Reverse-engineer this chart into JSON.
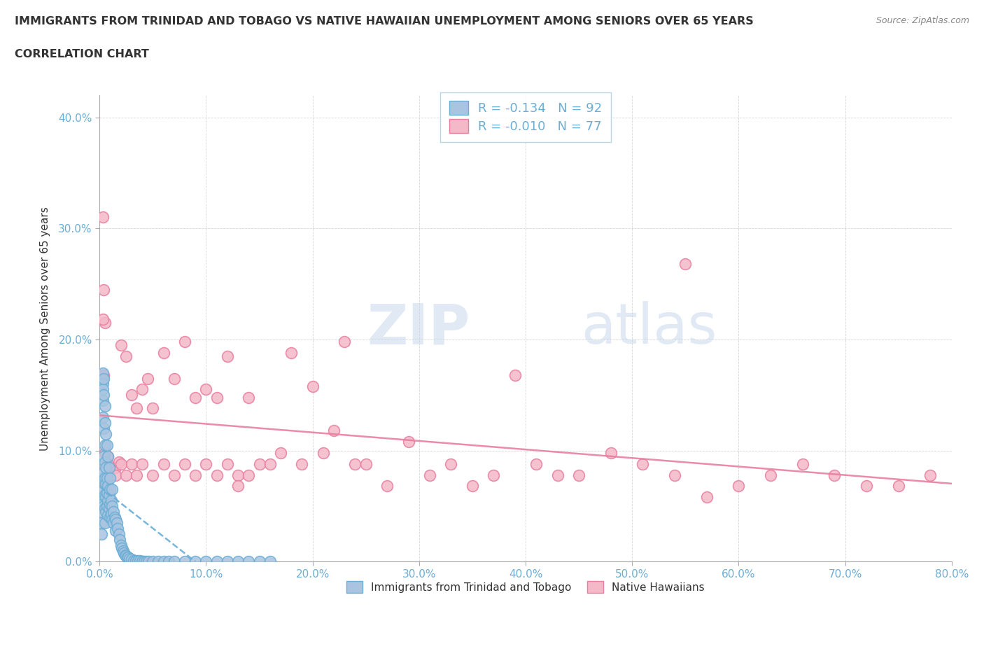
{
  "title_line1": "IMMIGRANTS FROM TRINIDAD AND TOBAGO VS NATIVE HAWAIIAN UNEMPLOYMENT AMONG SENIORS OVER 65 YEARS",
  "title_line2": "CORRELATION CHART",
  "source": "Source: ZipAtlas.com",
  "ylabel": "Unemployment Among Seniors over 65 years",
  "xlim": [
    0.0,
    0.8
  ],
  "ylim": [
    0.0,
    0.42
  ],
  "xticks": [
    0.0,
    0.1,
    0.2,
    0.3,
    0.4,
    0.5,
    0.6,
    0.7,
    0.8
  ],
  "xticklabels": [
    "0.0%",
    "10.0%",
    "20.0%",
    "30.0%",
    "40.0%",
    "50.0%",
    "60.0%",
    "70.0%",
    "80.0%"
  ],
  "yticks": [
    0.0,
    0.1,
    0.2,
    0.3,
    0.4
  ],
  "yticklabels": [
    "0.0%",
    "10.0%",
    "20.0%",
    "30.0%",
    "40.0%"
  ],
  "blue_color": "#a8c4e0",
  "blue_edge": "#6baed6",
  "pink_color": "#f4b8c8",
  "pink_edge": "#e87fa0",
  "blue_R": -0.134,
  "blue_N": 92,
  "pink_R": -0.01,
  "pink_N": 77,
  "watermark_zip": "ZIP",
  "watermark_atlas": "atlas",
  "grid_color": "#cccccc",
  "title_color": "#333333",
  "axis_label_color": "#333333",
  "tick_label_color": "#6baed6",
  "blue_scatter_x": [
    0.002,
    0.002,
    0.002,
    0.002,
    0.003,
    0.003,
    0.003,
    0.003,
    0.003,
    0.004,
    0.004,
    0.004,
    0.004,
    0.004,
    0.005,
    0.005,
    0.005,
    0.005,
    0.005,
    0.005,
    0.006,
    0.006,
    0.006,
    0.006,
    0.007,
    0.007,
    0.007,
    0.008,
    0.008,
    0.008,
    0.009,
    0.009,
    0.01,
    0.01,
    0.01,
    0.011,
    0.011,
    0.012,
    0.012,
    0.013,
    0.013,
    0.014,
    0.015,
    0.015,
    0.016,
    0.017,
    0.018,
    0.019,
    0.02,
    0.021,
    0.022,
    0.023,
    0.024,
    0.025,
    0.026,
    0.027,
    0.028,
    0.03,
    0.032,
    0.034,
    0.036,
    0.038,
    0.04,
    0.042,
    0.044,
    0.046,
    0.05,
    0.055,
    0.06,
    0.065,
    0.07,
    0.08,
    0.09,
    0.1,
    0.11,
    0.12,
    0.13,
    0.14,
    0.15,
    0.16,
    0.003,
    0.003,
    0.004,
    0.004,
    0.005,
    0.005,
    0.006,
    0.007,
    0.008,
    0.009,
    0.01,
    0.012
  ],
  "blue_scatter_y": [
    0.055,
    0.045,
    0.035,
    0.025,
    0.16,
    0.145,
    0.13,
    0.075,
    0.06,
    0.12,
    0.095,
    0.08,
    0.065,
    0.05,
    0.105,
    0.09,
    0.075,
    0.06,
    0.048,
    0.035,
    0.085,
    0.07,
    0.058,
    0.045,
    0.075,
    0.062,
    0.05,
    0.068,
    0.055,
    0.042,
    0.06,
    0.048,
    0.065,
    0.052,
    0.04,
    0.055,
    0.043,
    0.05,
    0.038,
    0.045,
    0.035,
    0.04,
    0.038,
    0.028,
    0.035,
    0.03,
    0.025,
    0.02,
    0.015,
    0.012,
    0.01,
    0.008,
    0.006,
    0.005,
    0.004,
    0.004,
    0.003,
    0.002,
    0.001,
    0.001,
    0.001,
    0.001,
    0.0,
    0.0,
    0.0,
    0.0,
    0.0,
    0.0,
    0.0,
    0.0,
    0.0,
    0.0,
    0.0,
    0.0,
    0.0,
    0.0,
    0.0,
    0.0,
    0.0,
    0.0,
    0.17,
    0.155,
    0.165,
    0.15,
    0.14,
    0.125,
    0.115,
    0.105,
    0.095,
    0.085,
    0.075,
    0.065
  ],
  "pink_scatter_x": [
    0.003,
    0.004,
    0.005,
    0.008,
    0.01,
    0.012,
    0.015,
    0.018,
    0.02,
    0.025,
    0.03,
    0.035,
    0.04,
    0.045,
    0.05,
    0.06,
    0.07,
    0.08,
    0.09,
    0.1,
    0.11,
    0.12,
    0.13,
    0.14,
    0.15,
    0.16,
    0.17,
    0.18,
    0.19,
    0.2,
    0.21,
    0.22,
    0.23,
    0.24,
    0.25,
    0.27,
    0.29,
    0.31,
    0.33,
    0.35,
    0.37,
    0.39,
    0.41,
    0.43,
    0.45,
    0.48,
    0.51,
    0.54,
    0.57,
    0.6,
    0.63,
    0.66,
    0.69,
    0.72,
    0.75,
    0.78,
    0.003,
    0.004,
    0.005,
    0.008,
    0.015,
    0.02,
    0.025,
    0.03,
    0.035,
    0.04,
    0.05,
    0.06,
    0.07,
    0.08,
    0.09,
    0.1,
    0.11,
    0.12,
    0.13,
    0.14,
    0.55
  ],
  "pink_scatter_y": [
    0.31,
    0.245,
    0.215,
    0.095,
    0.085,
    0.085,
    0.085,
    0.09,
    0.195,
    0.185,
    0.15,
    0.138,
    0.155,
    0.165,
    0.138,
    0.188,
    0.165,
    0.198,
    0.148,
    0.155,
    0.148,
    0.185,
    0.078,
    0.148,
    0.088,
    0.088,
    0.098,
    0.188,
    0.088,
    0.158,
    0.098,
    0.118,
    0.198,
    0.088,
    0.088,
    0.068,
    0.108,
    0.078,
    0.088,
    0.068,
    0.078,
    0.168,
    0.088,
    0.078,
    0.078,
    0.098,
    0.088,
    0.078,
    0.058,
    0.068,
    0.078,
    0.088,
    0.078,
    0.068,
    0.068,
    0.078,
    0.218,
    0.168,
    0.098,
    0.088,
    0.078,
    0.088,
    0.078,
    0.088,
    0.078,
    0.088,
    0.078,
    0.088,
    0.078,
    0.088,
    0.078,
    0.088,
    0.078,
    0.088,
    0.068,
    0.078,
    0.268
  ]
}
